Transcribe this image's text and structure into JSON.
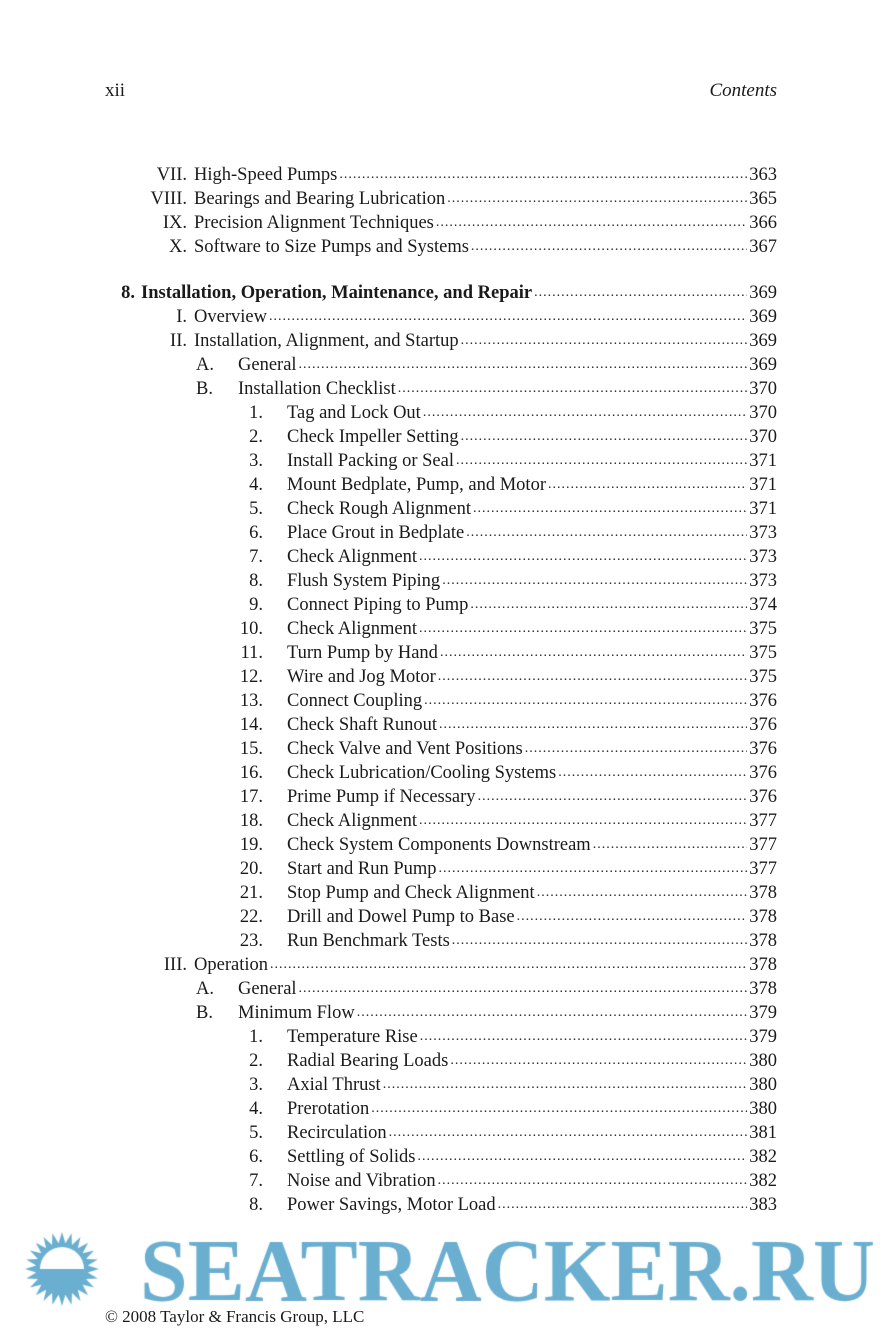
{
  "header": {
    "page_number": "xii",
    "section": "Contents"
  },
  "entries": [
    {
      "level": "roman",
      "num": "VII.",
      "text": "High-Speed Pumps",
      "page": "363"
    },
    {
      "level": "roman",
      "num": "VIII.",
      "text": "Bearings and Bearing Lubrication",
      "page": "365"
    },
    {
      "level": "roman",
      "num": "IX.",
      "text": "Precision Alignment Techniques",
      "page": "366"
    },
    {
      "level": "roman",
      "num": "X.",
      "text": "Software to Size Pumps and Systems",
      "page": "367"
    },
    {
      "level": "chapter",
      "num": "8.",
      "text": "Installation, Operation, Maintenance, and Repair",
      "page": "369"
    },
    {
      "level": "roman",
      "num": "I.",
      "text": "Overview",
      "page": "369"
    },
    {
      "level": "roman",
      "num": "II.",
      "text": "Installation, Alignment, and Startup",
      "page": "369"
    },
    {
      "level": "letter",
      "num": "A.",
      "text": "General",
      "page": "369"
    },
    {
      "level": "letter",
      "num": "B.",
      "text": "Installation Checklist",
      "page": "370"
    },
    {
      "level": "digit",
      "num": "1.",
      "text": "Tag and Lock Out",
      "page": "370"
    },
    {
      "level": "digit",
      "num": "2.",
      "text": "Check Impeller Setting",
      "page": "370"
    },
    {
      "level": "digit",
      "num": "3.",
      "text": "Install Packing or Seal",
      "page": "371"
    },
    {
      "level": "digit",
      "num": "4.",
      "text": "Mount Bedplate, Pump, and Motor",
      "page": "371"
    },
    {
      "level": "digit",
      "num": "5.",
      "text": "Check Rough Alignment",
      "page": "371"
    },
    {
      "level": "digit",
      "num": "6.",
      "text": "Place Grout in Bedplate",
      "page": "373"
    },
    {
      "level": "digit",
      "num": "7.",
      "text": "Check Alignment",
      "page": "373"
    },
    {
      "level": "digit",
      "num": "8.",
      "text": "Flush System Piping",
      "page": "373"
    },
    {
      "level": "digit",
      "num": "9.",
      "text": "Connect Piping to Pump",
      "page": "374"
    },
    {
      "level": "digit",
      "num": "10.",
      "text": "Check Alignment",
      "page": "375"
    },
    {
      "level": "digit",
      "num": "11.",
      "text": "Turn Pump by Hand",
      "page": "375"
    },
    {
      "level": "digit",
      "num": "12.",
      "text": "Wire and Jog Motor",
      "page": "375"
    },
    {
      "level": "digit",
      "num": "13.",
      "text": "Connect Coupling",
      "page": "376"
    },
    {
      "level": "digit",
      "num": "14.",
      "text": "Check Shaft Runout",
      "page": "376"
    },
    {
      "level": "digit",
      "num": "15.",
      "text": "Check Valve and Vent Positions",
      "page": "376"
    },
    {
      "level": "digit",
      "num": "16.",
      "text": "Check Lubrication/Cooling Systems",
      "page": "376"
    },
    {
      "level": "digit",
      "num": "17.",
      "text": "Prime Pump if Necessary",
      "page": "376"
    },
    {
      "level": "digit",
      "num": "18.",
      "text": "Check Alignment",
      "page": "377"
    },
    {
      "level": "digit",
      "num": "19.",
      "text": "Check System Components Downstream",
      "page": "377"
    },
    {
      "level": "digit",
      "num": "20.",
      "text": "Start and Run Pump",
      "page": "377"
    },
    {
      "level": "digit",
      "num": "21.",
      "text": "Stop Pump and Check Alignment",
      "page": "378"
    },
    {
      "level": "digit",
      "num": "22.",
      "text": "Drill and Dowel Pump to Base",
      "page": "378"
    },
    {
      "level": "digit",
      "num": "23.",
      "text": "Run Benchmark Tests",
      "page": "378"
    },
    {
      "level": "roman",
      "num": "III.",
      "text": "Operation",
      "page": "378"
    },
    {
      "level": "letter",
      "num": "A.",
      "text": "General",
      "page": "378"
    },
    {
      "level": "letter",
      "num": "B.",
      "text": "Minimum Flow",
      "page": "379"
    },
    {
      "level": "digit",
      "num": "1.",
      "text": "Temperature Rise",
      "page": "379"
    },
    {
      "level": "digit",
      "num": "2.",
      "text": "Radial Bearing Loads",
      "page": "380"
    },
    {
      "level": "digit",
      "num": "3.",
      "text": "Axial Thrust",
      "page": "380"
    },
    {
      "level": "digit",
      "num": "4.",
      "text": "Prerotation",
      "page": "380"
    },
    {
      "level": "digit",
      "num": "5.",
      "text": "Recirculation",
      "page": "381"
    },
    {
      "level": "digit",
      "num": "6.",
      "text": "Settling of Solids",
      "page": "382"
    },
    {
      "level": "digit",
      "num": "7.",
      "text": "Noise and Vibration",
      "page": "382"
    },
    {
      "level": "digit",
      "num": "8.",
      "text": "Power Savings, Motor Load",
      "page": "383"
    }
  ],
  "footer": {
    "copyright": "© 2008 Taylor & Francis Group, LLC"
  },
  "watermark": {
    "text": "SEATRACKER.RU",
    "color": "#6aaed0"
  }
}
